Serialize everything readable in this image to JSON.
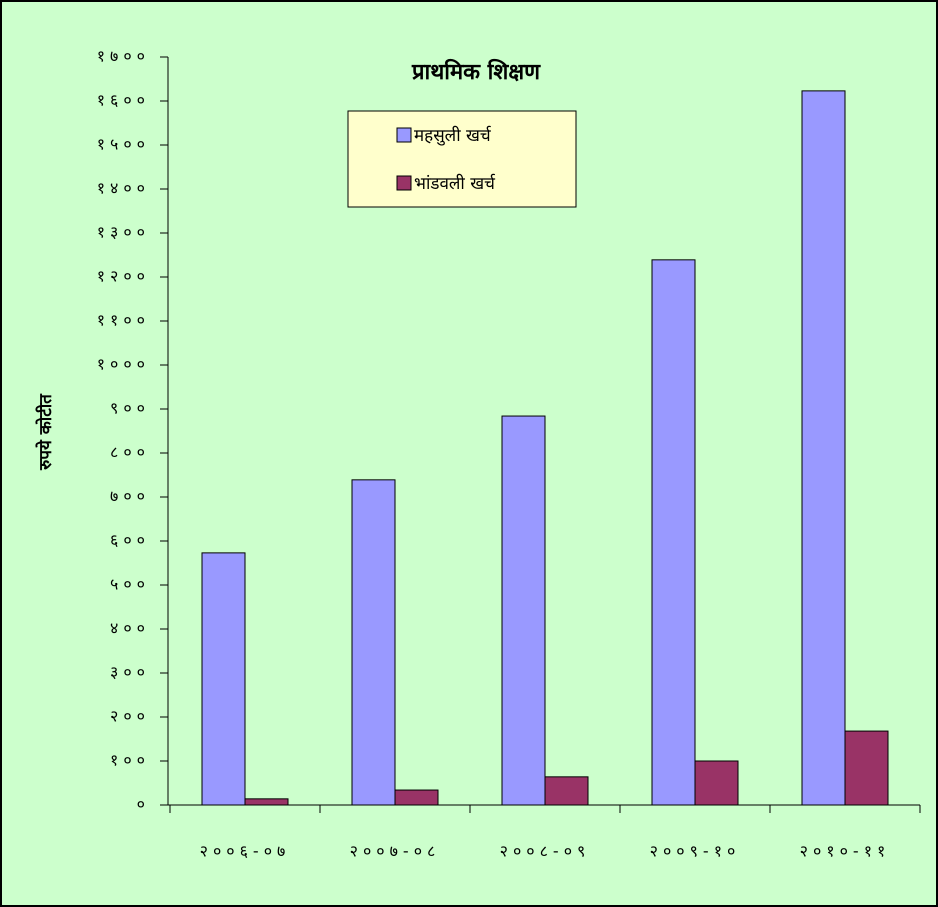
{
  "chart_data": {
    "type": "bar",
    "title": "प्राथमिक शिक्षण",
    "y_label": "रुपये कोटीत",
    "categories": [
      "२००६-०७",
      "२००७-०८",
      "२००८-०९",
      "२००९-१०",
      "२०१०-११"
    ],
    "series": [
      {
        "name": "महसुली खर्च",
        "color": "#9999ff",
        "values": [
          573,
          739,
          884,
          1239,
          1623
        ]
      },
      {
        "name": "भांडवली खर्च",
        "color": "#993366",
        "values": [
          14,
          34,
          64,
          100,
          168
        ]
      }
    ],
    "ylim": [
      0,
      1700
    ],
    "yticks": [
      {
        "value": 0,
        "label": "०"
      },
      {
        "value": 100,
        "label": "१००"
      },
      {
        "value": 200,
        "label": "२००"
      },
      {
        "value": 300,
        "label": "३००"
      },
      {
        "value": 400,
        "label": "४००"
      },
      {
        "value": 500,
        "label": "५००"
      },
      {
        "value": 600,
        "label": "६००"
      },
      {
        "value": 700,
        "label": "७००"
      },
      {
        "value": 800,
        "label": "८००"
      },
      {
        "value": 900,
        "label": "९००"
      },
      {
        "value": 1000,
        "label": "१०००"
      },
      {
        "value": 1100,
        "label": "११००"
      },
      {
        "value": 1200,
        "label": "१२००"
      },
      {
        "value": 1300,
        "label": "१३००"
      },
      {
        "value": 1400,
        "label": "१४००"
      },
      {
        "value": 1500,
        "label": "१५००"
      },
      {
        "value": 1600,
        "label": "१६००"
      },
      {
        "value": 1700,
        "label": "१७००"
      }
    ],
    "grid": false,
    "legend": "top"
  }
}
